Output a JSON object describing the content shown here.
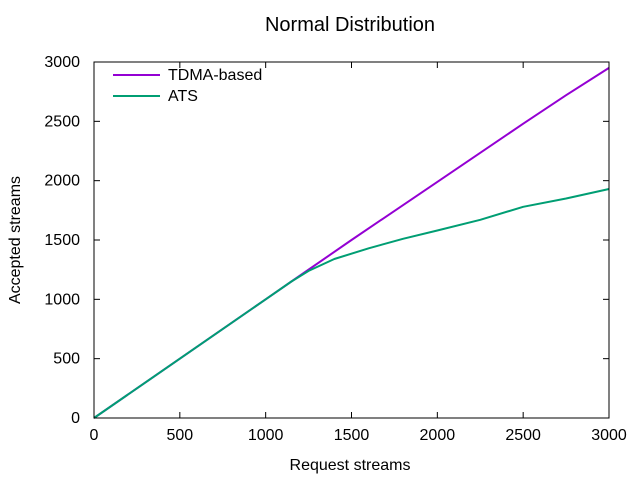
{
  "chart_data": {
    "type": "line",
    "title": "Normal Distribution",
    "xlabel": "Request streams",
    "ylabel": "Accepted streams",
    "xlim": [
      0,
      3000
    ],
    "ylim": [
      0,
      3000
    ],
    "xticks": [
      0,
      500,
      1000,
      1500,
      2000,
      2500,
      3000
    ],
    "yticks": [
      0,
      500,
      1000,
      1500,
      2000,
      2500,
      3000
    ],
    "grid": false,
    "legend_position": "top-left",
    "series": [
      {
        "name": "TDMA-based",
        "color": "#9400d3",
        "x": [
          0,
          500,
          1000,
          1150,
          1500,
          2000,
          2500,
          2750,
          3000
        ],
        "y": [
          0,
          500,
          1000,
          1150,
          1500,
          1990,
          2480,
          2720,
          2950
        ]
      },
      {
        "name": "ATS",
        "color": "#009e73",
        "x": [
          0,
          500,
          1000,
          1150,
          1250,
          1400,
          1600,
          1800,
          2000,
          2250,
          2500,
          2750,
          3000
        ],
        "y": [
          0,
          500,
          1000,
          1150,
          1240,
          1340,
          1430,
          1510,
          1580,
          1670,
          1780,
          1850,
          1930
        ]
      }
    ]
  }
}
